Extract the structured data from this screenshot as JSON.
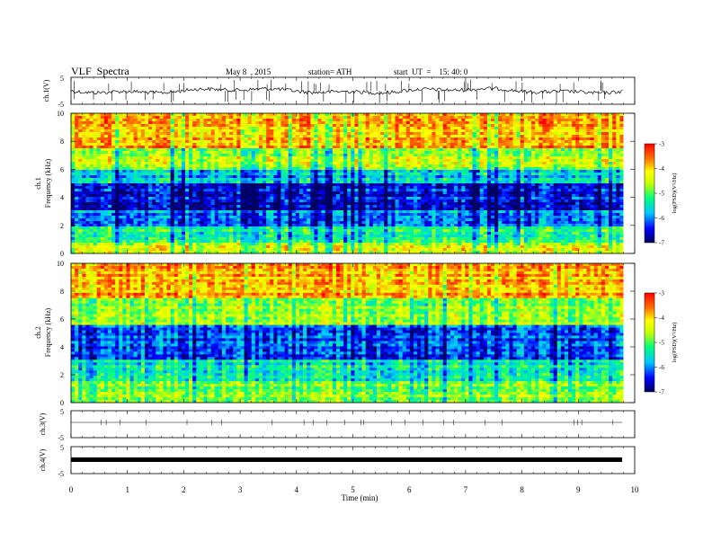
{
  "header": {
    "title": "VLF  Spectra",
    "date": "May 8  , 2015",
    "station": "station= ATH",
    "start": "start  UT  =    15: 40: 0"
  },
  "chart_data": [
    {
      "type": "line",
      "name": "ch1-waveform",
      "ylabel": "ch.1(V)",
      "yticks": [
        "5",
        "-5"
      ],
      "ylim": [
        -5,
        5
      ],
      "xlim": [
        0,
        10
      ],
      "data_extent_min": 9.8
    },
    {
      "type": "heatmap",
      "name": "ch1-spectrogram",
      "ylabel_lines": [
        "ch.1",
        "Frequency  (kHz)"
      ],
      "yticks": [
        "0",
        "2",
        "4",
        "6",
        "8",
        "10"
      ],
      "ylim_khz": [
        0,
        10
      ],
      "xlim": [
        0,
        10
      ],
      "colorbar": {
        "ticks": [
          "-3",
          "-4",
          "-5",
          "-6",
          "-7"
        ],
        "label": "log(PSD)(V²/Hz)",
        "range": [
          -7,
          -3
        ]
      }
    },
    {
      "type": "heatmap",
      "name": "ch2-spectrogram",
      "ylabel_lines": [
        "ch.2",
        "Frequency  (kHz)"
      ],
      "yticks": [
        "0",
        "2",
        "4",
        "6",
        "8",
        "10"
      ],
      "ylim_khz": [
        0,
        10
      ],
      "xlim": [
        0,
        10
      ],
      "colorbar": {
        "ticks": [
          "-3",
          "-4",
          "-5",
          "-6",
          "-7"
        ],
        "label": "log(PSD)(V²/Hz)",
        "range": [
          -7,
          -3
        ]
      }
    },
    {
      "type": "line",
      "name": "ch3-waveform",
      "ylabel": "ch.3(V)",
      "yticks": [
        "5",
        "-5"
      ],
      "ylim": [
        -5,
        5
      ]
    },
    {
      "type": "line",
      "name": "ch4-waveform",
      "ylabel": "ch.4(V)",
      "yticks": [
        "5",
        "-5"
      ],
      "ylim": [
        -5,
        5
      ]
    }
  ],
  "xaxis": {
    "label": "Time  (min)",
    "ticks": [
      "0",
      "1",
      "2",
      "3",
      "4",
      "5",
      "6",
      "7",
      "8",
      "9",
      "10"
    ],
    "range": [
      0,
      10
    ]
  },
  "colors": {
    "scale": [
      "#000080",
      "#0000ff",
      "#00bfff",
      "#00ff7f",
      "#ffff00",
      "#ff8000",
      "#e00000"
    ]
  }
}
